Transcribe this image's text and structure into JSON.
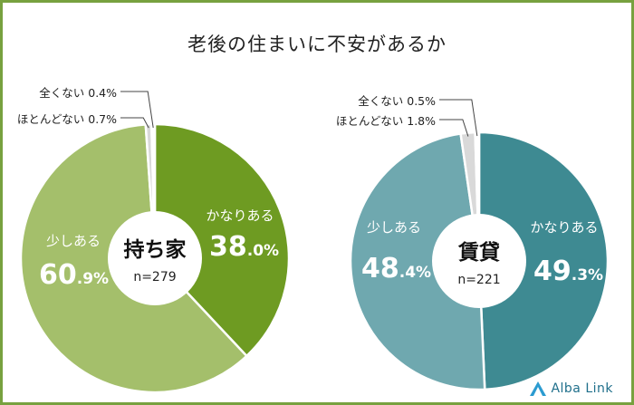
{
  "title": "老後の住まいに不安があるか",
  "logo": {
    "text": "Alba Link"
  },
  "chart_data": [
    {
      "type": "pie",
      "center_label": "持ち家",
      "n_label": "n=279",
      "slices": [
        {
          "label": "かなりある",
          "value": 38.0,
          "whole": "38",
          "dec": ".0%",
          "color": "#6e9b22"
        },
        {
          "label": "少しある",
          "value": 60.9,
          "whole": "60",
          "dec": ".9%",
          "color": "#a4bf6b"
        },
        {
          "label": "ほとんどない",
          "value": 0.7,
          "display": "ほとんどない 0.7%",
          "color": "#d9d9d9"
        },
        {
          "label": "全くない",
          "value": 0.4,
          "display": "全くない 0.4%",
          "color": "#ffffff"
        }
      ]
    },
    {
      "type": "pie",
      "center_label": "賃貸",
      "n_label": "n=221",
      "slices": [
        {
          "label": "かなりある",
          "value": 49.3,
          "whole": "49",
          "dec": ".3%",
          "color": "#3e8a92"
        },
        {
          "label": "少しある",
          "value": 48.4,
          "whole": "48",
          "dec": ".4%",
          "color": "#6fa8af"
        },
        {
          "label": "ほとんどない",
          "value": 1.8,
          "display": "ほとんどない 1.8%",
          "color": "#d9d9d9"
        },
        {
          "label": "全くない",
          "value": 0.5,
          "display": "全くない 0.5%",
          "color": "#ffffff"
        }
      ]
    }
  ]
}
